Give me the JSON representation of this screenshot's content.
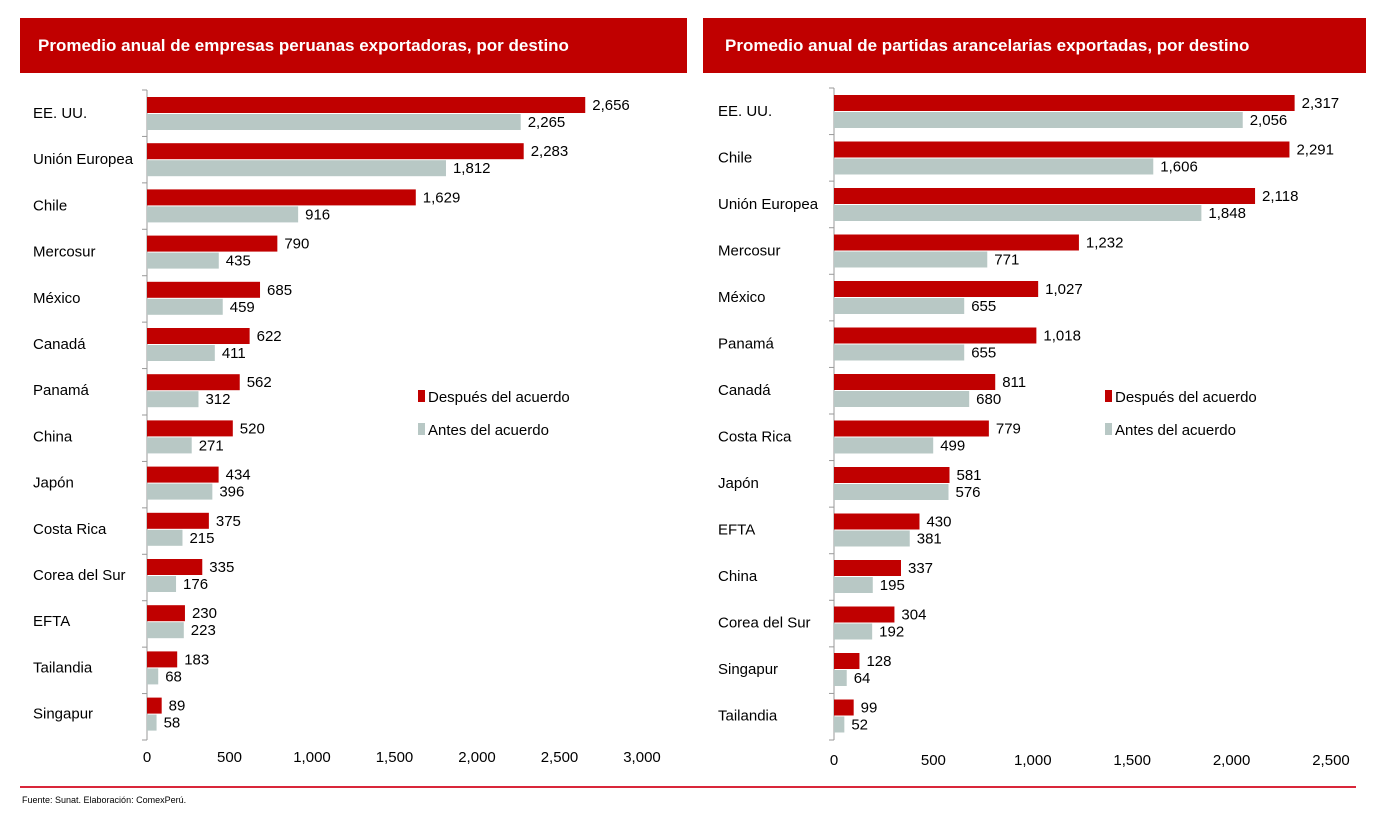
{
  "colors": {
    "after": "#c00000",
    "before": "#b8c8c5"
  },
  "footer": {
    "source": "Fuente: Sunat. Elaboración: ComexPerú."
  },
  "chart_data": [
    {
      "type": "bar",
      "orientation": "horizontal",
      "title": "Promedio anual de empresas peruanas exportadoras, por destino",
      "categories": [
        "EE. UU.",
        "Unión Europea",
        "Chile",
        "Mercosur",
        "México",
        "Canadá",
        "Panamá",
        "China",
        "Japón",
        "Costa Rica",
        "Corea del Sur",
        "EFTA",
        "Tailandia",
        "Singapur"
      ],
      "series": [
        {
          "name": "Después del acuerdo",
          "values": [
            2656,
            2283,
            1629,
            790,
            685,
            622,
            562,
            520,
            434,
            375,
            335,
            230,
            183,
            89
          ]
        },
        {
          "name": "Antes del acuerdo",
          "values": [
            2265,
            1812,
            916,
            435,
            459,
            411,
            312,
            271,
            396,
            215,
            176,
            223,
            68,
            58
          ]
        }
      ],
      "xlim": [
        0,
        3000
      ],
      "xticks": [
        0,
        500,
        1000,
        1500,
        2000,
        2500,
        3000
      ],
      "legend": "center-right"
    },
    {
      "type": "bar",
      "orientation": "horizontal",
      "title": "Promedio anual de partidas arancelarias exportadas, por destino",
      "categories": [
        "EE. UU.",
        "Chile",
        "Unión Europea",
        "Mercosur",
        "México",
        "Panamá",
        "Canadá",
        "Costa Rica",
        "Japón",
        "EFTA",
        "China",
        "Corea del Sur",
        "Singapur",
        "Tailandia"
      ],
      "series": [
        {
          "name": "Después del acuerdo",
          "values": [
            2317,
            2291,
            2118,
            1232,
            1027,
            1018,
            811,
            779,
            581,
            430,
            337,
            304,
            128,
            99
          ]
        },
        {
          "name": "Antes del acuerdo",
          "values": [
            2056,
            1606,
            1848,
            771,
            655,
            655,
            680,
            499,
            576,
            381,
            195,
            192,
            64,
            52
          ]
        }
      ],
      "xlim": [
        0,
        2500
      ],
      "xticks": [
        0,
        500,
        1000,
        1500,
        2000,
        2500
      ],
      "legend": "center-right"
    }
  ]
}
